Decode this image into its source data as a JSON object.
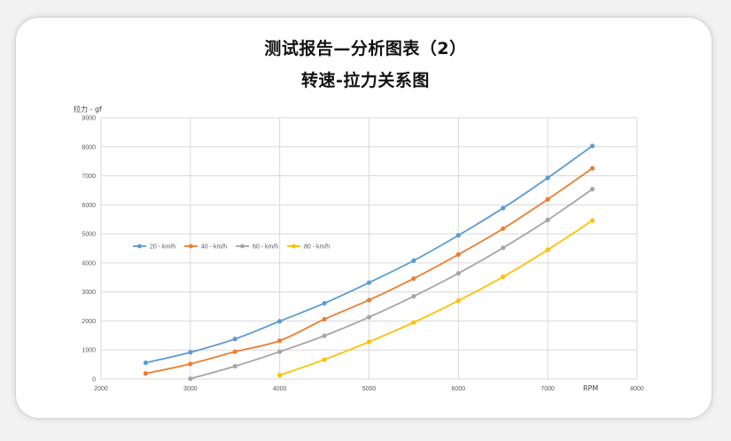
{
  "header": {
    "title": "测试报告—分析图表（2）",
    "subtitle": "转速-拉力关系图"
  },
  "chart_data": {
    "type": "line",
    "title": "转速-拉力关系图",
    "xlabel": "RPM",
    "ylabel": "拉力 - gf",
    "xlim": [
      2000,
      8000
    ],
    "ylim": [
      0,
      9000
    ],
    "xticks": [
      2000,
      3000,
      4000,
      5000,
      6000,
      7000,
      8000
    ],
    "yticks": [
      0,
      1000,
      2000,
      3000,
      4000,
      5000,
      6000,
      7000,
      8000,
      9000
    ],
    "grid": true,
    "legend_position": "left-middle",
    "series": [
      {
        "name": "20 - km/h",
        "color": "#5b9bd5",
        "x": [
          2500,
          3000,
          3500,
          4000,
          4500,
          5000,
          5500,
          6000,
          6500,
          7000,
          7500
        ],
        "y": [
          560,
          920,
          1380,
          1990,
          2610,
          3320,
          4080,
          4950,
          5890,
          6930,
          8030
        ]
      },
      {
        "name": "40 - km/h",
        "color": "#ed7d31",
        "x": [
          2500,
          3000,
          3500,
          4000,
          4500,
          5000,
          5500,
          6000,
          6500,
          7000,
          7500
        ],
        "y": [
          190,
          520,
          940,
          1320,
          2060,
          2720,
          3460,
          4290,
          5180,
          6190,
          7260
        ]
      },
      {
        "name": "60 - km/h",
        "color": "#a5a5a5",
        "x": [
          3000,
          3500,
          4000,
          4500,
          5000,
          5500,
          6000,
          6500,
          7000,
          7500
        ],
        "y": [
          10,
          440,
          940,
          1490,
          2130,
          2850,
          3640,
          4520,
          5480,
          6540
        ]
      },
      {
        "name": "80 - km/h",
        "color": "#ffc000",
        "x": [
          4000,
          4500,
          5000,
          5500,
          6000,
          6500,
          7000,
          7500
        ],
        "y": [
          130,
          670,
          1280,
          1950,
          2700,
          3520,
          4450,
          5460
        ]
      }
    ]
  }
}
